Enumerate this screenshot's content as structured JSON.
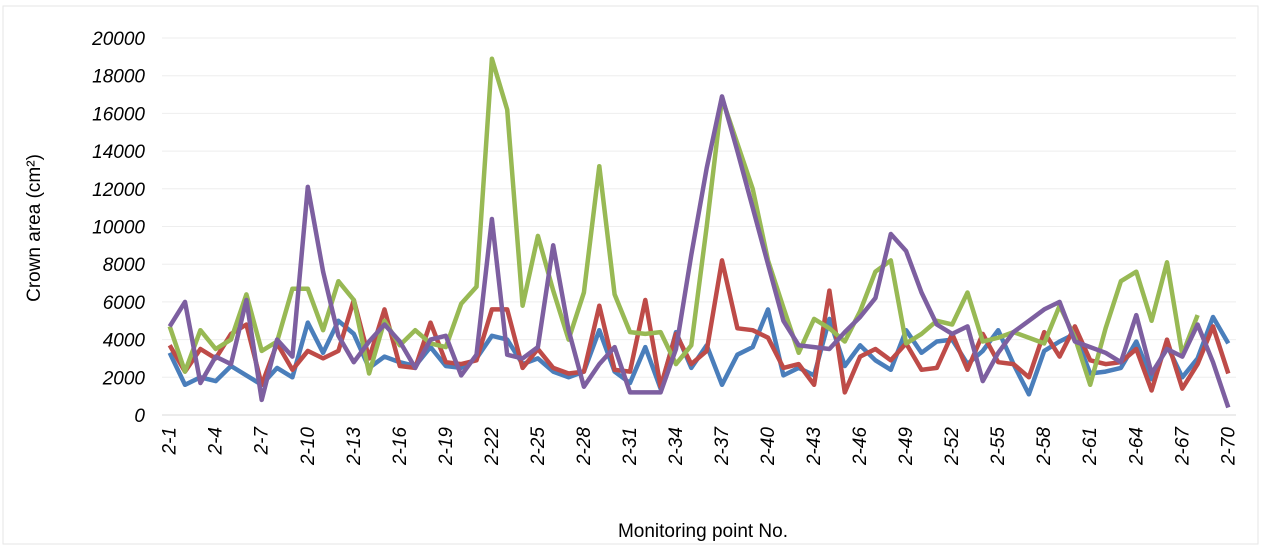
{
  "chart_data": {
    "type": "line",
    "x_label": "Monitoring point No.",
    "y_label": "Crown area (cm²)",
    "categories": [
      "2-1",
      null,
      null,
      "2-4",
      null,
      null,
      "2-7",
      null,
      null,
      "2-10",
      null,
      null,
      "2-13",
      null,
      null,
      "2-16",
      null,
      null,
      "2-19",
      null,
      null,
      "2-22",
      null,
      null,
      "2-25",
      null,
      null,
      "2-28",
      null,
      null,
      "2-31",
      null,
      null,
      "2-34",
      null,
      null,
      "2-37",
      null,
      null,
      "2-40",
      null,
      null,
      "2-43",
      null,
      null,
      "2-46",
      null,
      null,
      "2-49",
      null,
      null,
      "2-52",
      null,
      null,
      "2-55",
      null,
      null,
      "2-58",
      null,
      null,
      "2-61",
      null,
      null,
      "2-64",
      null,
      null,
      "2-67",
      null,
      null,
      "2-70"
    ],
    "series": [
      {
        "color": "#4a7ebb",
        "values": [
          3300,
          1600,
          2000,
          1800,
          2600,
          2100,
          1600,
          2500,
          2000,
          4900,
          3300,
          5000,
          4300,
          2500,
          3100,
          2800,
          2600,
          3600,
          2600,
          2500,
          3000,
          4200,
          4000,
          2700,
          3000,
          2300,
          2000,
          2300,
          4500,
          2300,
          1700,
          3600,
          1400,
          4400,
          2500,
          3700,
          1600,
          3200,
          3600,
          5600,
          2100,
          2500,
          2100,
          5100,
          2600,
          3700,
          2900,
          2400,
          4500,
          3300,
          3900,
          4000,
          2700,
          3400,
          4500,
          2700,
          1100,
          3400,
          3900,
          4300,
          2200,
          2300,
          2500,
          3900,
          1900,
          3700,
          2000,
          3000,
          5200,
          3800
        ]
      },
      {
        "color": "#be4b48",
        "values": [
          3700,
          2300,
          3500,
          3000,
          4300,
          4800,
          1600,
          3800,
          2400,
          3400,
          3000,
          3400,
          6100,
          3000,
          5600,
          2600,
          2500,
          4900,
          2800,
          2700,
          2900,
          5600,
          5600,
          2500,
          3500,
          2500,
          2200,
          2300,
          5800,
          2400,
          2300,
          6100,
          1500,
          4300,
          2700,
          3400,
          8200,
          4600,
          4500,
          4100,
          2500,
          2700,
          1600,
          6600,
          1200,
          3100,
          3500,
          2900,
          3800,
          2400,
          2500,
          4300,
          2400,
          4300,
          2800,
          2700,
          2000,
          4400,
          3100,
          4700,
          2900,
          2700,
          2800,
          3500,
          1300,
          4000,
          1400,
          2700,
          4700,
          2200
        ]
      },
      {
        "color": "#98b954",
        "values": [
          4700,
          2300,
          4500,
          3500,
          4000,
          6400,
          3400,
          3900,
          6700,
          6700,
          4500,
          7100,
          6100,
          2200,
          5000,
          3700,
          4500,
          3800,
          3600,
          5900,
          6800,
          18900,
          16200,
          5800,
          9500,
          6600,
          4000,
          6500,
          13200,
          6400,
          4400,
          4300,
          4400,
          2700,
          3700,
          10000,
          16800,
          14400,
          12000,
          8200,
          5700,
          3300,
          5100,
          4600,
          3900,
          5500,
          7600,
          8200,
          3800,
          4300,
          5000,
          4800,
          6500,
          3900,
          4100,
          4400,
          4100,
          3800,
          5800,
          4100,
          1600,
          4600,
          7100,
          7600,
          5000,
          8100,
          3200,
          5300,
          null,
          null
        ]
      },
      {
        "color": "#7d5fa0",
        "values": [
          4700,
          6000,
          1700,
          3100,
          2700,
          6100,
          800,
          4000,
          3100,
          12100,
          7600,
          4200,
          2800,
          3900,
          4800,
          3900,
          2500,
          4000,
          4200,
          2100,
          3200,
          10400,
          3200,
          3000,
          3600,
          9000,
          4500,
          1500,
          2700,
          3600,
          1200,
          1200,
          1200,
          3500,
          8500,
          13100,
          16900,
          14000,
          11000,
          8000,
          5000,
          3700,
          3600,
          3500,
          4400,
          5200,
          6200,
          9600,
          8700,
          6500,
          4800,
          4300,
          4700,
          1800,
          3300,
          4400,
          5000,
          5600,
          6000,
          3900,
          3600,
          3300,
          2800,
          5300,
          2200,
          3500,
          3100,
          4800,
          2800,
          400
        ]
      }
    ],
    "ylim": [
      0,
      20000
    ],
    "yticks": [
      0,
      2000,
      4000,
      6000,
      8000,
      10000,
      12000,
      14000,
      16000,
      18000,
      20000
    ],
    "grid": true
  }
}
